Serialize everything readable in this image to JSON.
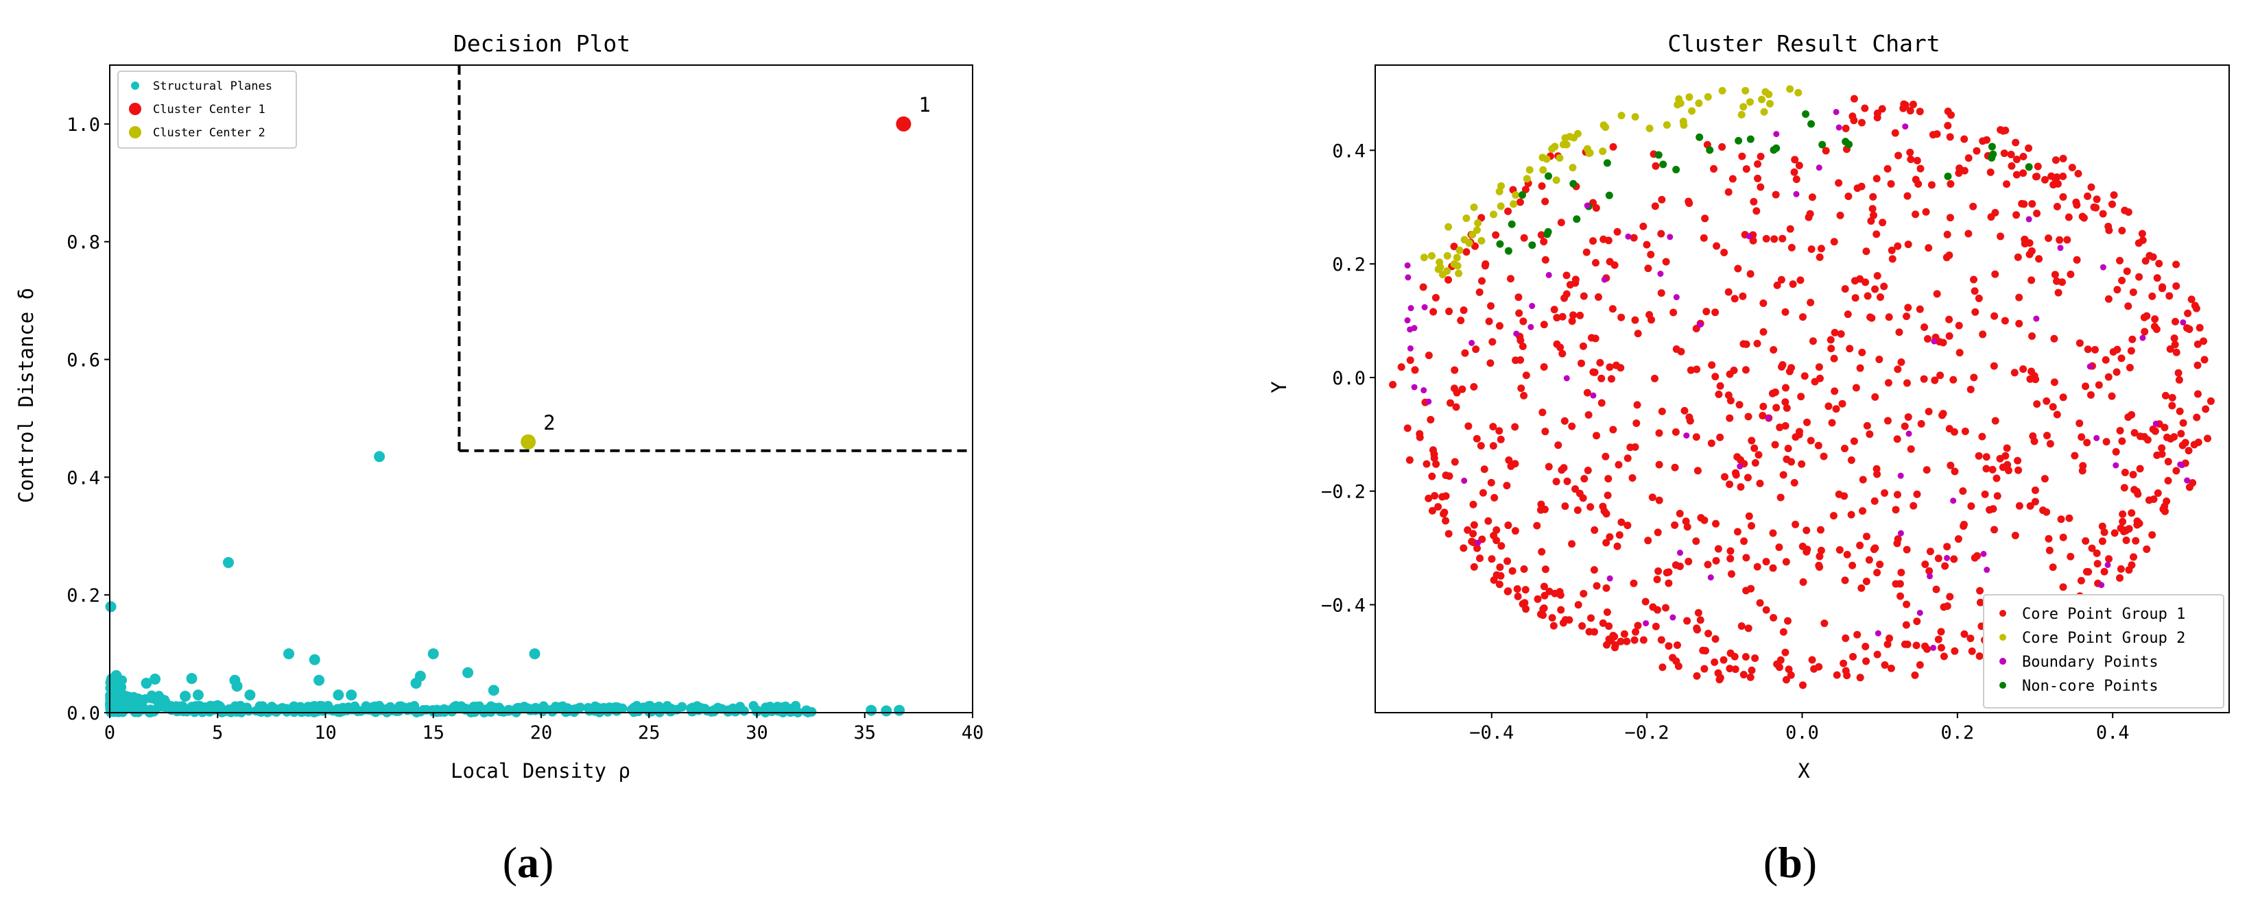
{
  "captions": {
    "a": "(a)",
    "b": "(b)"
  },
  "colors": {
    "cyan": "#17bfbf",
    "red": "#ee1111",
    "olive": "#bfbf00",
    "magenta": "#bf00bf",
    "green": "#007f00"
  },
  "chart_data": [
    {
      "type": "scatter",
      "title": "Decision Plot",
      "xlabel": "Local Density ρ",
      "ylabel": "Control Distance δ",
      "xlim": [
        0,
        40
      ],
      "ylim": [
        0,
        1.1
      ],
      "xticks": [
        "0",
        "5",
        "10",
        "15",
        "20",
        "25",
        "30",
        "35",
        "40"
      ],
      "yticks": [
        "0.0",
        "0.2",
        "0.4",
        "0.6",
        "0.8",
        "1.0"
      ],
      "legend": [
        "Structural Planes",
        "Cluster Center 1",
        "Cluster Center 2"
      ],
      "legend_position": "upper-left",
      "threshold_lines": {
        "rho": 16.2,
        "delta": 0.445
      },
      "annotations": [
        {
          "text": "1",
          "x": 36.8,
          "y": 1.0
        },
        {
          "text": "2",
          "x": 19.4,
          "y": 0.46
        }
      ],
      "series": [
        {
          "name": "Structural Planes",
          "points": [
            [
              0.05,
              0.18
            ],
            [
              12.5,
              0.435
            ],
            [
              5.5,
              0.255
            ],
            [
              19.7,
              0.1
            ],
            [
              15.0,
              0.1
            ],
            [
              8.3,
              0.1
            ],
            [
              9.5,
              0.09
            ],
            [
              16.6,
              0.068
            ],
            [
              14.4,
              0.062
            ],
            [
              5.8,
              0.055
            ],
            [
              5.9,
              0.045
            ],
            [
              3.8,
              0.058
            ],
            [
              2.1,
              0.057
            ],
            [
              1.7,
              0.05
            ],
            [
              0.3,
              0.063
            ],
            [
              9.7,
              0.055
            ],
            [
              14.2,
              0.05
            ],
            [
              2.0,
              0.025
            ],
            [
              3.5,
              0.028
            ],
            [
              4.1,
              0.03
            ],
            [
              6.5,
              0.03
            ],
            [
              17.8,
              0.038
            ],
            [
              11.2,
              0.03
            ],
            [
              10.6,
              0.03
            ],
            [
              0.2,
              0.02
            ],
            [
              0.5,
              0.015
            ],
            [
              1.0,
              0.012
            ],
            [
              1.4,
              0.01
            ],
            [
              2.6,
              0.01
            ],
            [
              3.0,
              0.008
            ],
            [
              4.5,
              0.008
            ],
            [
              5.0,
              0.012
            ],
            [
              6.0,
              0.01
            ],
            [
              7.0,
              0.008
            ],
            [
              7.5,
              0.006
            ],
            [
              8.0,
              0.007
            ],
            [
              9.0,
              0.006
            ],
            [
              10.0,
              0.008
            ],
            [
              11.0,
              0.005
            ],
            [
              12.0,
              0.006
            ],
            [
              13.0,
              0.005
            ],
            [
              14.0,
              0.006
            ],
            [
              15.5,
              0.005
            ],
            [
              16.5,
              0.006
            ],
            [
              17.5,
              0.005
            ],
            [
              18.5,
              0.004
            ],
            [
              19.5,
              0.005
            ],
            [
              20.5,
              0.004
            ],
            [
              21.5,
              0.004
            ],
            [
              22.5,
              0.004
            ],
            [
              23.5,
              0.004
            ],
            [
              24.5,
              0.004
            ],
            [
              26.0,
              0.003
            ],
            [
              27.0,
              0.003
            ],
            [
              28.0,
              0.003
            ],
            [
              29.0,
              0.003
            ],
            [
              30.0,
              0.003
            ],
            [
              31.0,
              0.004
            ],
            [
              31.8,
              0.004
            ],
            [
              32.3,
              0.003
            ],
            [
              35.3,
              0.004
            ],
            [
              36.0,
              0.003
            ],
            [
              36.6,
              0.004
            ]
          ]
        },
        {
          "name": "Cluster Center 1",
          "points": [
            [
              36.8,
              1.0
            ]
          ]
        },
        {
          "name": "Cluster Center 2",
          "points": [
            [
              19.4,
              0.46
            ]
          ]
        }
      ]
    },
    {
      "type": "scatter",
      "title": "Cluster Result Chart",
      "xlabel": "X",
      "ylabel": "Y",
      "xlim": [
        -0.55,
        0.55
      ],
      "ylim": [
        -0.59,
        0.55
      ],
      "xticks": [
        "−0.4",
        "−0.2",
        "0.0",
        "0.2",
        "0.4"
      ],
      "yticks": [
        "−0.4",
        "−0.2",
        "0.0",
        "0.2",
        "0.4"
      ],
      "legend": [
        "Core Point Group 1",
        "Core Point Group 2",
        "Boundary Points",
        "Non-core Points"
      ],
      "legend_position": "lower-right",
      "clusters": {
        "center": [
          0.0,
          -0.02
        ],
        "rx": 0.53,
        "ry": 0.525,
        "counts": {
          "core1": 900,
          "core2": 75,
          "boundary": 60,
          "noncore": 32
        }
      }
    }
  ]
}
